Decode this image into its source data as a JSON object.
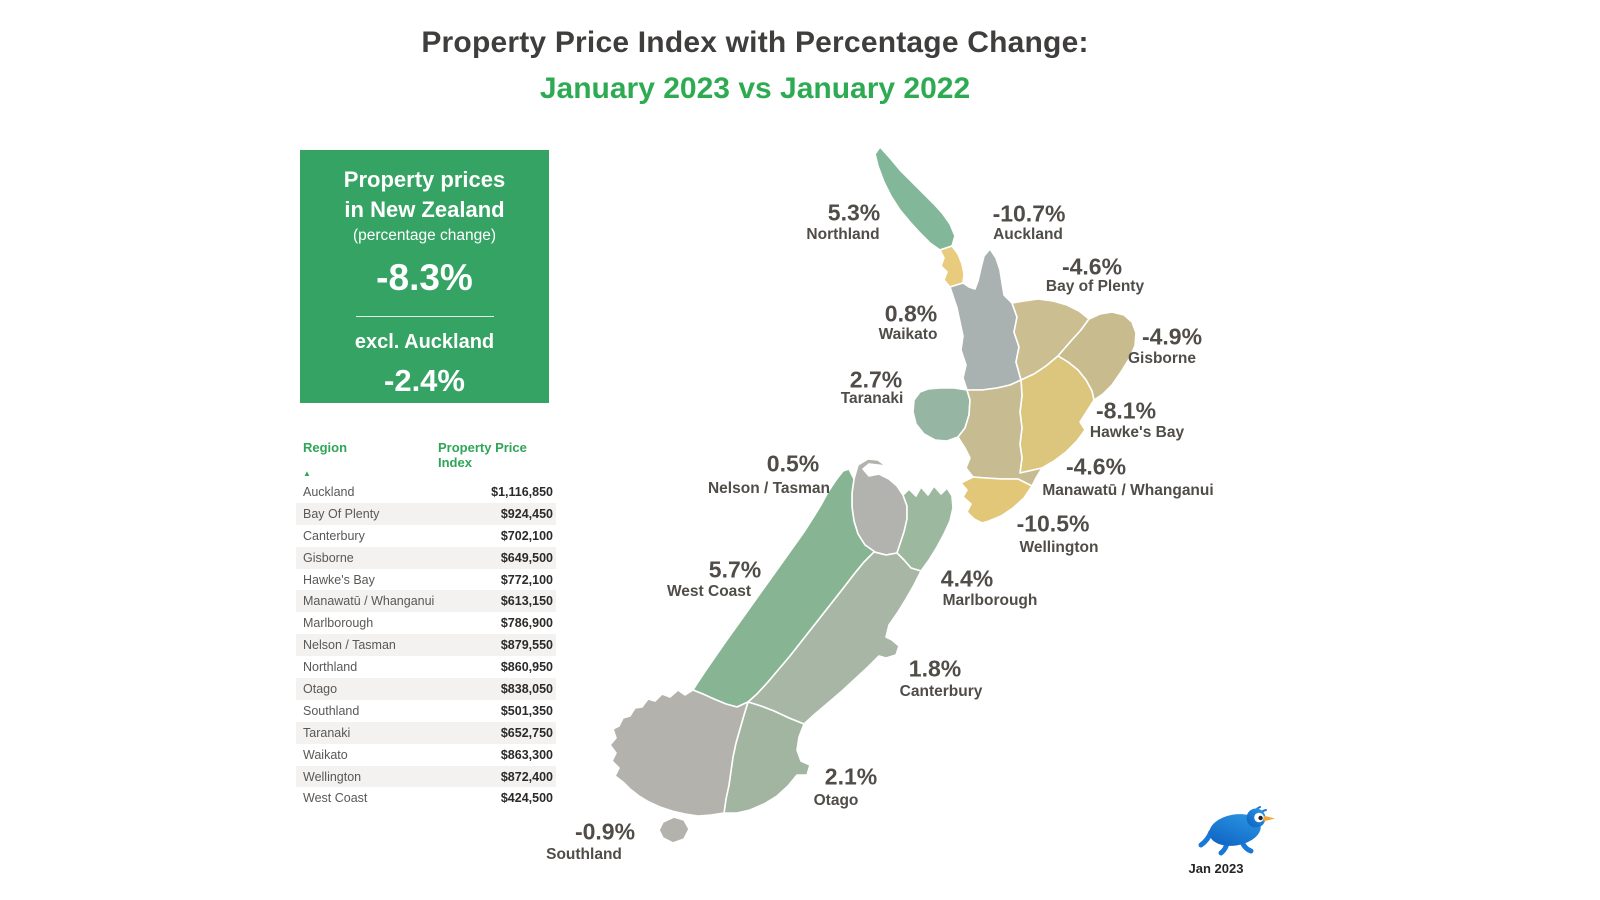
{
  "title": {
    "line1": "Property Price Index with Percentage Change:",
    "line2": "January 2023 vs January 2022"
  },
  "kpi_card": {
    "heading_line1": "Property prices",
    "heading_line2": "in New Zealand",
    "subheading": "(percentage change)",
    "value": "-8.3%",
    "excl_label": "excl. Auckland",
    "excl_value": "-2.4%"
  },
  "table": {
    "header": {
      "col1": "Region",
      "col2_line1": "Property Price",
      "col2_line2": "Index",
      "sort_icon": "ascending-triangle"
    },
    "rows": [
      {
        "region": "Auckland",
        "value": "$1,116,850"
      },
      {
        "region": "Bay Of Plenty",
        "value": "$924,450"
      },
      {
        "region": "Canterbury",
        "value": "$702,100"
      },
      {
        "region": "Gisborne",
        "value": "$649,500"
      },
      {
        "region": "Hawke's Bay",
        "value": "$772,100"
      },
      {
        "region": "Manawatū / Whanganui",
        "value": "$613,150"
      },
      {
        "region": "Marlborough",
        "value": "$786,900"
      },
      {
        "region": "Nelson / Tasman",
        "value": "$879,550"
      },
      {
        "region": "Northland",
        "value": "$860,950"
      },
      {
        "region": "Otago",
        "value": "$838,050"
      },
      {
        "region": "Southland",
        "value": "$501,350"
      },
      {
        "region": "Taranaki",
        "value": "$652,750"
      },
      {
        "region": "Waikato",
        "value": "$863,300"
      },
      {
        "region": "Wellington",
        "value": "$872,400"
      },
      {
        "region": "West Coast",
        "value": "$424,500"
      }
    ]
  },
  "map": {
    "regions": [
      {
        "id": "northland",
        "name": "Northland",
        "pct": "5.3%",
        "color": "#83b79a"
      },
      {
        "id": "auckland",
        "name": "Auckland",
        "pct": "-10.7%",
        "color": "#e8cb7d"
      },
      {
        "id": "bay_of_plenty",
        "name": "Bay of Plenty",
        "pct": "-4.6%",
        "color": "#cbbf92"
      },
      {
        "id": "waikato",
        "name": "Waikato",
        "pct": "0.8%",
        "color": "#a9b2b1"
      },
      {
        "id": "gisborne",
        "name": "Gisborne",
        "pct": "-4.9%",
        "color": "#c8bc8e"
      },
      {
        "id": "taranaki",
        "name": "Taranaki",
        "pct": "2.7%",
        "color": "#97b5a3"
      },
      {
        "id": "hawkes_bay",
        "name": "Hawke's Bay",
        "pct": "-8.1%",
        "color": "#dcc57d"
      },
      {
        "id": "nelson_tasman",
        "name": "Nelson / Tasman",
        "pct": "0.5%",
        "color": "#b2b3ae"
      },
      {
        "id": "manawatu_whanganui",
        "name": "Manawatū / Whanganui",
        "pct": "-4.6%",
        "color": "#c7bb91"
      },
      {
        "id": "wellington",
        "name": "Wellington",
        "pct": "-10.5%",
        "color": "#e2c778"
      },
      {
        "id": "west_coast",
        "name": "West Coast",
        "pct": "5.7%",
        "color": "#87b493"
      },
      {
        "id": "marlborough",
        "name": "Marlborough",
        "pct": "4.4%",
        "color": "#9cb9a0"
      },
      {
        "id": "canterbury",
        "name": "Canterbury",
        "pct": "1.8%",
        "color": "#a8b7a5"
      },
      {
        "id": "otago",
        "name": "Otago",
        "pct": "2.1%",
        "color": "#a2b5a1"
      },
      {
        "id": "southland",
        "name": "Southland",
        "pct": "-0.9%",
        "color": "#b4b2ac"
      },
      {
        "id": "stewart_island",
        "name": "",
        "pct": "",
        "color": "#b4b2ac"
      }
    ]
  },
  "footer": {
    "logo": "kiwi-icon",
    "caption": "Jan 2023"
  },
  "colors": {
    "accent_green": "#2fa558",
    "title_green": "#2eab52",
    "kpi_background": "#35a363",
    "title_text": "#3f3e3d",
    "map_label_text": "#504d49",
    "row_alt_background": "#f3f2f1",
    "table_value_text": "#2b2a29",
    "table_region_text": "#5a5856",
    "kiwi_blue": "#1878d8",
    "kiwi_beak_orange": "#f4a43a"
  },
  "chart_data": {
    "type": "heatmap",
    "subtype": "choropleth-map-of-new-zealand-with-table",
    "title": "Property Price Index with Percentage Change: January 2023 vs January 2022",
    "national_pct_change": -8.3,
    "national_excl_auckland_pct_change": -2.4,
    "value_column": "Property Price Index",
    "regions": [
      {
        "region": "Auckland",
        "pct_change": -10.7,
        "property_price_index": 1116850
      },
      {
        "region": "Bay Of Plenty",
        "pct_change": -4.6,
        "property_price_index": 924450
      },
      {
        "region": "Canterbury",
        "pct_change": 1.8,
        "property_price_index": 702100
      },
      {
        "region": "Gisborne",
        "pct_change": -4.9,
        "property_price_index": 649500
      },
      {
        "region": "Hawke's Bay",
        "pct_change": -8.1,
        "property_price_index": 772100
      },
      {
        "region": "Manawatū / Whanganui",
        "pct_change": -4.6,
        "property_price_index": 613150
      },
      {
        "region": "Marlborough",
        "pct_change": 4.4,
        "property_price_index": 786900
      },
      {
        "region": "Nelson / Tasman",
        "pct_change": 0.5,
        "property_price_index": 879550
      },
      {
        "region": "Northland",
        "pct_change": 5.3,
        "property_price_index": 860950
      },
      {
        "region": "Otago",
        "pct_change": 2.1,
        "property_price_index": 838050
      },
      {
        "region": "Southland",
        "pct_change": -0.9,
        "property_price_index": 501350
      },
      {
        "region": "Taranaki",
        "pct_change": 2.7,
        "property_price_index": 652750
      },
      {
        "region": "Waikato",
        "pct_change": 0.8,
        "property_price_index": 863300
      },
      {
        "region": "Wellington",
        "pct_change": -10.5,
        "property_price_index": 872400
      },
      {
        "region": "West Coast",
        "pct_change": 5.7,
        "property_price_index": 424500
      }
    ],
    "legend_position": "none",
    "date_label": "Jan 2023"
  }
}
